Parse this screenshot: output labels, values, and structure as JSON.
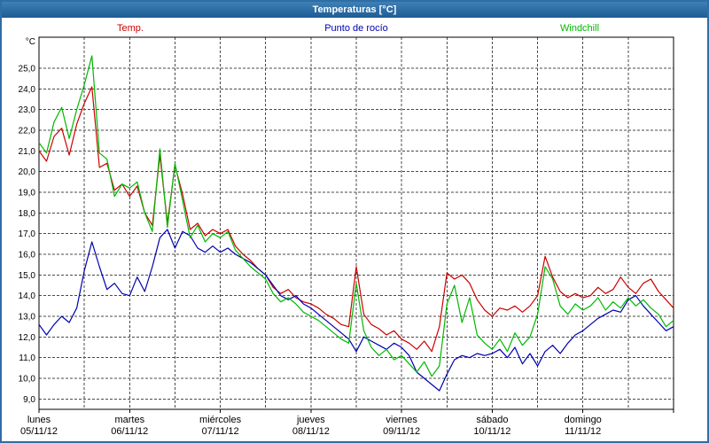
{
  "window": {
    "title": "Temperaturas [°C]"
  },
  "legend": [
    {
      "label": "Temp.",
      "color": "#cc0000"
    },
    {
      "label": "Punto de rocío",
      "color": "#0000b0"
    },
    {
      "label": "Windchill",
      "color": "#00b800"
    }
  ],
  "chart_data": {
    "type": "line",
    "title": "Temperaturas [°C]",
    "legend_position": "top",
    "grid": true,
    "x_step_hours": 2,
    "x_axis": {
      "range_hours": [
        0,
        168
      ],
      "minor_grid_hours": 12,
      "day_names": [
        "lunes",
        "martes",
        "miércoles",
        "jueves",
        "viernes",
        "sábado",
        "domingo"
      ],
      "day_dates": [
        "05/11/12",
        "06/11/12",
        "07/11/12",
        "08/11/12",
        "09/11/12",
        "10/11/12",
        "11/11/12"
      ]
    },
    "y_axis": {
      "label": "°C",
      "min": 9,
      "max": 25,
      "step": 1,
      "range": [
        8.5,
        26.5
      ],
      "tick_format": "comma-decimal"
    },
    "series": [
      {
        "name": "Temp.",
        "color": "#cc0000",
        "values": [
          21.0,
          20.5,
          21.7,
          22.1,
          20.8,
          22.3,
          23.3,
          24.1,
          20.2,
          20.4,
          19.1,
          19.4,
          18.8,
          19.3,
          18.0,
          17.4,
          20.8,
          17.5,
          20.3,
          18.9,
          17.2,
          17.5,
          16.9,
          17.2,
          17.0,
          17.2,
          16.4,
          16.0,
          15.7,
          15.3,
          15.0,
          14.4,
          14.1,
          14.3,
          13.9,
          13.7,
          13.6,
          13.4,
          13.1,
          12.9,
          12.6,
          12.5,
          15.4,
          13.1,
          12.6,
          12.4,
          12.1,
          12.3,
          11.9,
          11.7,
          11.4,
          11.8,
          11.3,
          12.5,
          15.1,
          14.8,
          15.0,
          14.6,
          13.8,
          13.3,
          13.0,
          13.4,
          13.3,
          13.5,
          13.2,
          13.5,
          14.0,
          15.9,
          14.9,
          14.2,
          13.9,
          14.1,
          13.9,
          14.0,
          14.4,
          14.1,
          14.3,
          14.9,
          14.4,
          14.1,
          14.6,
          14.8,
          14.2,
          13.8,
          13.4
        ]
      },
      {
        "name": "Punto de rocío",
        "color": "#0000b0",
        "values": [
          12.6,
          12.1,
          12.6,
          13.0,
          12.7,
          13.4,
          15.2,
          16.6,
          15.4,
          14.3,
          14.6,
          14.1,
          14.0,
          14.9,
          14.2,
          15.4,
          16.8,
          17.2,
          16.3,
          17.1,
          16.9,
          16.3,
          16.1,
          16.4,
          16.1,
          16.3,
          16.0,
          15.8,
          15.6,
          15.3,
          15.0,
          14.5,
          14.0,
          13.8,
          14.0,
          13.6,
          13.4,
          13.1,
          12.8,
          12.5,
          12.2,
          11.9,
          11.3,
          12.0,
          11.8,
          11.6,
          11.4,
          11.7,
          11.5,
          11.1,
          10.3,
          10.0,
          9.7,
          9.4,
          10.2,
          10.9,
          11.1,
          11.0,
          11.2,
          11.1,
          11.2,
          11.4,
          11.0,
          11.5,
          10.7,
          11.2,
          10.6,
          11.3,
          11.6,
          11.2,
          11.7,
          12.1,
          12.3,
          12.6,
          12.9,
          13.1,
          13.3,
          13.2,
          13.8,
          14.0,
          13.5,
          13.1,
          12.7,
          12.3,
          12.5
        ]
      },
      {
        "name": "Windchill",
        "color": "#00b800",
        "values": [
          21.4,
          20.9,
          22.4,
          23.1,
          21.6,
          23.0,
          24.2,
          25.6,
          20.9,
          20.6,
          18.8,
          19.4,
          19.2,
          19.5,
          18.0,
          17.1,
          21.1,
          17.3,
          20.4,
          18.6,
          16.8,
          17.4,
          16.6,
          17.0,
          16.8,
          17.1,
          16.2,
          15.8,
          15.4,
          15.1,
          14.8,
          14.1,
          13.7,
          13.9,
          13.6,
          13.2,
          13.0,
          12.8,
          12.5,
          12.2,
          11.9,
          11.7,
          14.6,
          12.3,
          11.5,
          11.1,
          11.4,
          10.9,
          11.1,
          10.7,
          10.3,
          10.8,
          10.1,
          10.6,
          13.6,
          14.5,
          12.7,
          13.9,
          12.1,
          11.7,
          11.4,
          11.9,
          11.3,
          12.2,
          11.6,
          12.0,
          13.1,
          15.4,
          14.8,
          13.5,
          13.1,
          13.6,
          13.3,
          13.5,
          13.9,
          13.3,
          13.7,
          13.4,
          13.9,
          13.5,
          13.8,
          13.4,
          13.1,
          12.5,
          12.8
        ]
      }
    ]
  }
}
